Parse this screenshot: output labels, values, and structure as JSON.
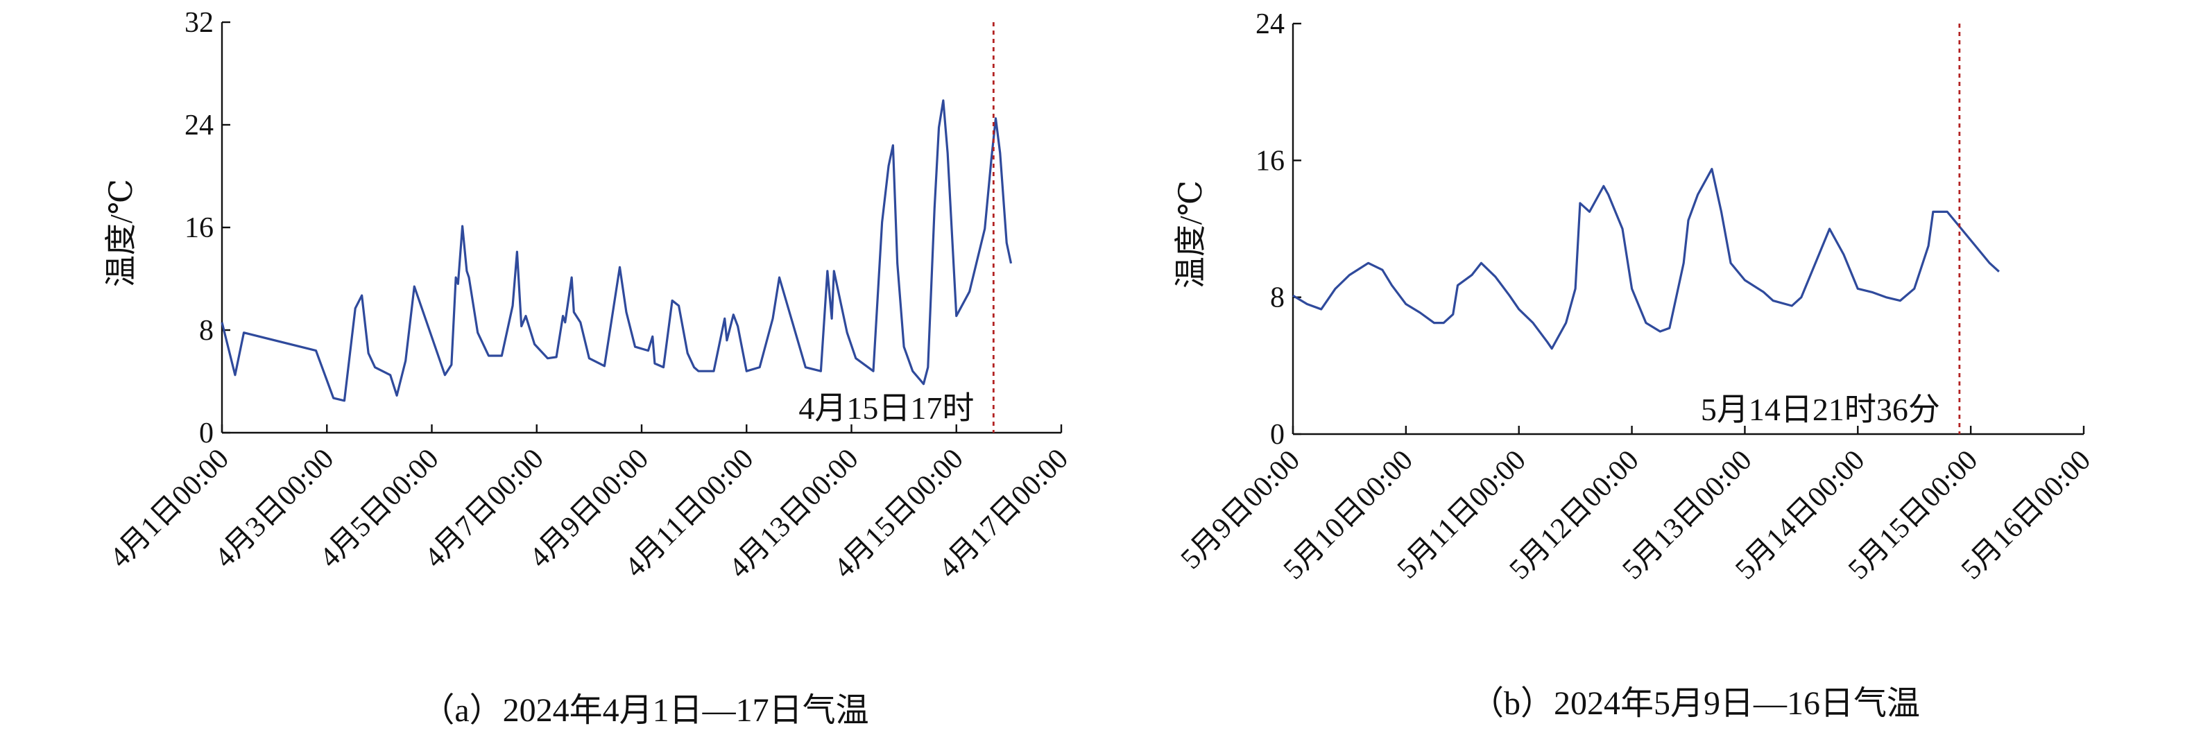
{
  "chart_data": [
    {
      "type": "line",
      "ylabel": "温度/℃",
      "caption": "（a）2024年4月1日—17日气温",
      "color": "#2f4a9c",
      "x": [
        "04-01 00:00",
        "04-01 06:00",
        "04-01 10:00",
        "04-02 19:00",
        "04-03 03:00",
        "04-03 08:00",
        "04-03 13:00",
        "04-03 16:00",
        "04-03 19:00",
        "04-03 22:00",
        "04-04 05:00",
        "04-04 08:00",
        "04-04 12:00",
        "04-04 16:00",
        "04-05 06:00",
        "04-05 09:00",
        "04-05 11:00",
        "04-05 12:00",
        "04-05 14:00",
        "04-05 16:00",
        "04-05 17:00",
        "04-05 21:00",
        "04-06 02:00",
        "04-06 08:00",
        "04-06 13:00",
        "04-06 15:00",
        "04-06 17:00",
        "04-06 19:00",
        "04-06 23:00",
        "04-07 05:00",
        "04-07 09:00",
        "04-07 12:00",
        "04-07 13:00",
        "04-07 16:00",
        "04-07 17:00",
        "04-07 20:00",
        "04-08 00:00",
        "04-08 07:00",
        "04-08 14:00",
        "04-08 17:00",
        "04-08 21:00",
        "04-09 03:00",
        "04-09 05:00",
        "04-09 06:00",
        "04-09 10:00",
        "04-09 14:00",
        "04-09 17:00",
        "04-09 21:00",
        "04-10 00:00",
        "04-10 02:00",
        "04-10 09:00",
        "04-10 14:00",
        "04-10 15:00",
        "04-10 18:00",
        "04-10 20:00",
        "04-11 00:00",
        "04-11 06:00",
        "04-11 12:00",
        "04-11 15:00",
        "04-12 03:00",
        "04-12 10:00",
        "04-12 13:00",
        "04-12 15:00",
        "04-12 16:00",
        "04-12 22:00",
        "04-13 02:00",
        "04-13 10:00",
        "04-13 14:00",
        "04-13 17:00",
        "04-13 19:00",
        "04-13 21:00",
        "04-14 00:00",
        "04-14 04:00",
        "04-14 08:00",
        "04-14 09:00",
        "04-14 11:00",
        "04-14 14:00",
        "04-14 16:00",
        "04-14 18:00",
        "04-14 20:00",
        "04-15 00:00",
        "04-15 06:00",
        "04-15 13:00",
        "04-15 16:00",
        "04-15 18:00",
        "04-15 20:00",
        "04-15 23:00",
        "04-16 01:00"
      ],
      "values": [
        8.6,
        4.5,
        7.8,
        6.4,
        2.7,
        2.5,
        9.7,
        10.7,
        6.2,
        5.1,
        4.5,
        2.9,
        5.6,
        11.4,
        4.5,
        5.3,
        12.1,
        11.6,
        16.1,
        12.6,
        12.1,
        7.8,
        6.0,
        6.0,
        9.9,
        14.1,
        8.3,
        9.1,
        6.9,
        5.8,
        5.9,
        9.1,
        8.6,
        12.1,
        9.4,
        8.6,
        5.8,
        5.2,
        12.9,
        9.4,
        6.7,
        6.4,
        7.5,
        5.4,
        5.1,
        10.3,
        9.9,
        6.2,
        5.1,
        4.8,
        4.8,
        8.9,
        7.2,
        9.2,
        8.3,
        4.8,
        5.1,
        8.9,
        12.1,
        5.1,
        4.8,
        12.6,
        8.9,
        12.6,
        7.8,
        5.8,
        4.8,
        16.4,
        20.8,
        22.4,
        13.2,
        6.7,
        4.8,
        4.0,
        3.8,
        5.1,
        17.5,
        23.8,
        25.9,
        21.8,
        9.1,
        11.0,
        15.9,
        21.3,
        24.5,
        21.8,
        14.8,
        13.2
      ],
      "xlim": [
        "04-01 00:00",
        "04-17 00:00"
      ],
      "xticks": [
        {
          "value": "04-01 00:00",
          "label": "4月1日00:00"
        },
        {
          "value": "04-03 00:00",
          "label": "4月3日00:00"
        },
        {
          "value": "04-05 00:00",
          "label": "4月5日00:00"
        },
        {
          "value": "04-07 00:00",
          "label": "4月7日00:00"
        },
        {
          "value": "04-09 00:00",
          "label": "4月9日00:00"
        },
        {
          "value": "04-11 00:00",
          "label": "4月11日00:00"
        },
        {
          "value": "04-13 00:00",
          "label": "4月13日00:00"
        },
        {
          "value": "04-15 00:00",
          "label": "4月15日00:00"
        },
        {
          "value": "04-17 00:00",
          "label": "4月17日00:00"
        }
      ],
      "ylim": [
        0,
        32
      ],
      "yticks": [
        0,
        8,
        16,
        24,
        32
      ],
      "marker": {
        "x": "04-15 17:00",
        "label": "4月15日17时",
        "color": "#b22222"
      }
    },
    {
      "type": "line",
      "ylabel": "温度/℃",
      "caption": "（b）2024年5月9日—16日气温",
      "color": "#2f4a9c",
      "x": [
        "05-09 00:00",
        "05-09 03:00",
        "05-09 06:00",
        "05-09 09:00",
        "05-09 12:00",
        "05-09 16:00",
        "05-09 19:00",
        "05-09 21:00",
        "05-10 00:00",
        "05-10 03:00",
        "05-10 06:00",
        "05-10 08:00",
        "05-10 10:00",
        "05-10 11:00",
        "05-10 14:00",
        "05-10 16:00",
        "05-10 19:00",
        "05-10 22:00",
        "05-11 00:00",
        "05-11 03:00",
        "05-11 06:00",
        "05-11 07:00",
        "05-11 10:00",
        "05-11 12:00",
        "05-11 13:00",
        "05-11 15:00",
        "05-11 18:00",
        "05-11 19:00",
        "05-11 22:00",
        "05-12 00:00",
        "05-12 03:00",
        "05-12 06:00",
        "05-12 08:00",
        "05-12 11:00",
        "05-12 12:00",
        "05-12 14:00",
        "05-12 17:00",
        "05-12 19:00",
        "05-12 21:00",
        "05-13 00:00",
        "05-13 04:00",
        "05-13 06:00",
        "05-13 10:00",
        "05-13 12:00",
        "05-13 15:00",
        "05-13 18:00",
        "05-13 21:00",
        "05-14 00:00",
        "05-14 03:00",
        "05-14 06:00",
        "05-14 09:00",
        "05-14 12:00",
        "05-14 15:00",
        "05-14 16:00",
        "05-14 19:00",
        "05-14 22:00",
        "05-15 01:00",
        "05-15 04:00",
        "05-15 06:00"
      ],
      "values": [
        8.1,
        7.6,
        7.3,
        8.5,
        9.3,
        10.0,
        9.6,
        8.7,
        7.6,
        7.1,
        6.5,
        6.5,
        7.0,
        8.7,
        9.3,
        10.0,
        9.2,
        8.1,
        7.3,
        6.5,
        5.4,
        5.0,
        6.5,
        8.5,
        13.5,
        13.0,
        14.5,
        14.0,
        12.0,
        8.5,
        6.5,
        6.0,
        6.2,
        10.0,
        12.5,
        14.0,
        15.5,
        13.0,
        10.0,
        9.0,
        8.3,
        7.8,
        7.5,
        8.0,
        10.0,
        12.0,
        10.5,
        8.5,
        8.3,
        8.0,
        7.8,
        8.5,
        11.0,
        13.0,
        13.0,
        12.0,
        11.0,
        10.0,
        9.5
      ],
      "xlim": [
        "05-09 00:00",
        "05-16 00:00"
      ],
      "xticks": [
        {
          "value": "05-09 00:00",
          "label": "5月9日00:00"
        },
        {
          "value": "05-10 00:00",
          "label": "5月10日00:00"
        },
        {
          "value": "05-11 00:00",
          "label": "5月11日00:00"
        },
        {
          "value": "05-12 00:00",
          "label": "5月12日00:00"
        },
        {
          "value": "05-13 00:00",
          "label": "5月13日00:00"
        },
        {
          "value": "05-14 00:00",
          "label": "5月14日00:00"
        },
        {
          "value": "05-15 00:00",
          "label": "5月15日00:00"
        },
        {
          "value": "05-16 00:00",
          "label": "5月16日00:00"
        }
      ],
      "ylim": [
        0,
        24
      ],
      "yticks": [
        0,
        8,
        16,
        24
      ],
      "marker": {
        "x": "05-14 21:36",
        "label": "5月14日21时36分",
        "color": "#b22222"
      }
    }
  ]
}
